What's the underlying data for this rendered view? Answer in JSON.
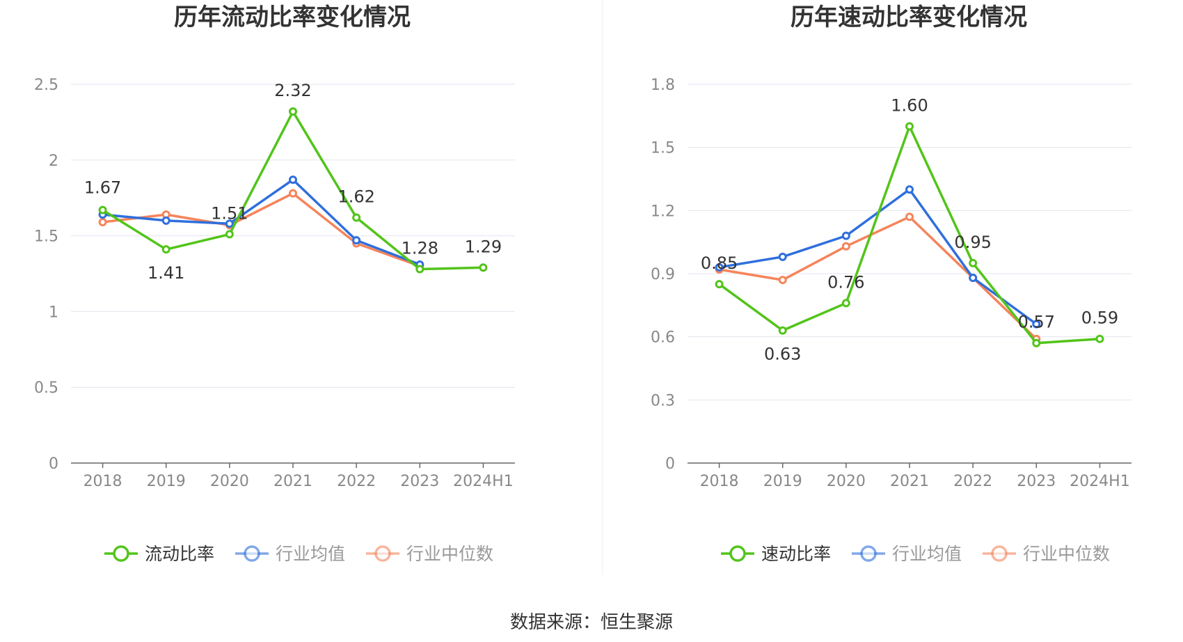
{
  "source_text": "数据来源：恒生聚源",
  "colors": {
    "main_series": "#52c41a",
    "industry_avg": "#2f6fdc",
    "industry_median": "#f5845b",
    "grid": "#e3e6ef",
    "axis": "#666666",
    "tick_text": "#888888",
    "divider": "#eeeeee"
  },
  "chart_data": [
    {
      "type": "line",
      "title": "历年流动比率变化情况",
      "categories": [
        "2018",
        "2019",
        "2020",
        "2021",
        "2022",
        "2023",
        "2024H1"
      ],
      "ylim": [
        0,
        2.5
      ],
      "yticks": [
        0,
        0.5,
        1,
        1.5,
        2,
        2.5
      ],
      "ytick_labels": [
        "0",
        "0.5",
        "1",
        "1.5",
        "2",
        "2.5"
      ],
      "grid": true,
      "legend_position": "bottom",
      "series": [
        {
          "name": "流动比率",
          "values": [
            1.67,
            1.41,
            1.51,
            2.32,
            1.62,
            1.28,
            1.29
          ],
          "labels": [
            "1.67",
            "1.41",
            "1.51",
            "2.32",
            "1.62",
            "1.28",
            "1.29"
          ]
        },
        {
          "name": "行业均值",
          "values": [
            1.64,
            1.6,
            1.58,
            1.87,
            1.47,
            1.31,
            null
          ]
        },
        {
          "name": "行业中位数",
          "values": [
            1.59,
            1.64,
            1.57,
            1.78,
            1.45,
            1.3,
            null
          ]
        }
      ]
    },
    {
      "type": "line",
      "title": "历年速动比率变化情况",
      "categories": [
        "2018",
        "2019",
        "2020",
        "2021",
        "2022",
        "2023",
        "2024H1"
      ],
      "ylim": [
        0,
        1.8
      ],
      "yticks": [
        0,
        0.3,
        0.6,
        0.9,
        1.2,
        1.5,
        1.8
      ],
      "ytick_labels": [
        "0",
        "0.3",
        "0.6",
        "0.9",
        "1.2",
        "1.5",
        "1.8"
      ],
      "grid": true,
      "legend_position": "bottom",
      "series": [
        {
          "name": "速动比率",
          "values": [
            0.85,
            0.63,
            0.76,
            1.6,
            0.95,
            0.57,
            0.59
          ],
          "labels": [
            "0.85",
            "0.63",
            "0.76",
            "1.60",
            "0.95",
            "0.57",
            "0.59"
          ]
        },
        {
          "name": "行业均值",
          "values": [
            0.93,
            0.98,
            1.08,
            1.3,
            0.88,
            0.66,
            null
          ]
        },
        {
          "name": "行业中位数",
          "values": [
            0.92,
            0.87,
            1.03,
            1.17,
            0.88,
            0.59,
            null
          ]
        }
      ]
    }
  ]
}
